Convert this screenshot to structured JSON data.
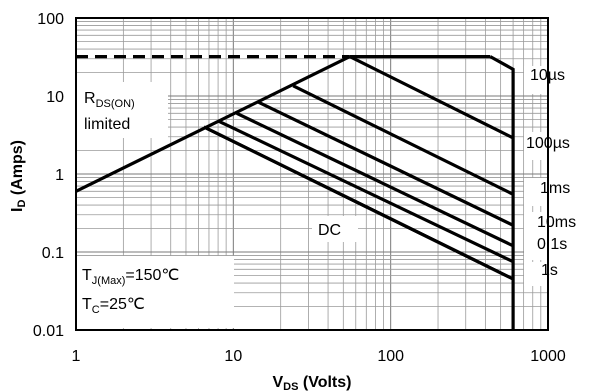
{
  "chart_data": {
    "type": "line",
    "scale": {
      "x": "log",
      "y": "log"
    },
    "xlim": [
      1,
      1000
    ],
    "ylim": [
      0.01,
      100
    ],
    "grid": true,
    "x_tick_labels": [
      "1",
      "10",
      "100",
      "1000"
    ],
    "y_tick_labels": [
      "0.01",
      "0.1",
      "1",
      "10",
      "100"
    ],
    "xlabel": {
      "main": "V",
      "sub": "DS",
      "rest": " (Volts)"
    },
    "ylabel": {
      "main": "I",
      "sub": "D",
      "rest": " (Amps)"
    },
    "limits": {
      "rds_on_line": {
        "x": [
          1,
          55
        ],
        "y": [
          0.6,
          32
        ]
      },
      "current_limit": {
        "x": [
          55,
          430
        ],
        "y": [
          32,
          32
        ]
      },
      "current_limit_dashed": {
        "x": [
          1,
          55
        ],
        "y": [
          32,
          32
        ]
      },
      "voltage_limit": {
        "x": [
          430,
          600,
          600
        ],
        "y": [
          32,
          22,
          0.01
        ]
      }
    },
    "series": [
      {
        "name": "10µs",
        "x": [
          55,
          600
        ],
        "y": [
          32,
          2.9
        ]
      },
      {
        "name": "100µs",
        "x": [
          24,
          600
        ],
        "y": [
          13.5,
          0.55
        ]
      },
      {
        "name": "1ms",
        "x": [
          14.5,
          600
        ],
        "y": [
          8.3,
          0.22
        ]
      },
      {
        "name": "10ms",
        "x": [
          10.5,
          600
        ],
        "y": [
          6.0,
          0.12
        ]
      },
      {
        "name": "0.1s",
        "x": [
          8.0,
          600
        ],
        "y": [
          4.8,
          0.075
        ]
      },
      {
        "name": "1s",
        "x": [
          6.5,
          600
        ],
        "y": [
          4.0,
          0.045
        ]
      },
      {
        "name": "DC",
        "x": [
          6.5,
          600
        ],
        "y": [
          4.0,
          0.045
        ]
      }
    ],
    "annotations": {
      "rds": {
        "main": "R",
        "sub": "DS(ON)",
        "line2": "limited"
      },
      "dc_label": "DC",
      "tj": {
        "main": "T",
        "sub": "J(Max)",
        "rest": "=150℃"
      },
      "tc": {
        "main": "T",
        "sub": "C",
        "rest": "=25℃"
      }
    },
    "series_labels": [
      "10µs",
      "100µs",
      "1ms",
      "10ms",
      "0.1s",
      "1s"
    ]
  }
}
